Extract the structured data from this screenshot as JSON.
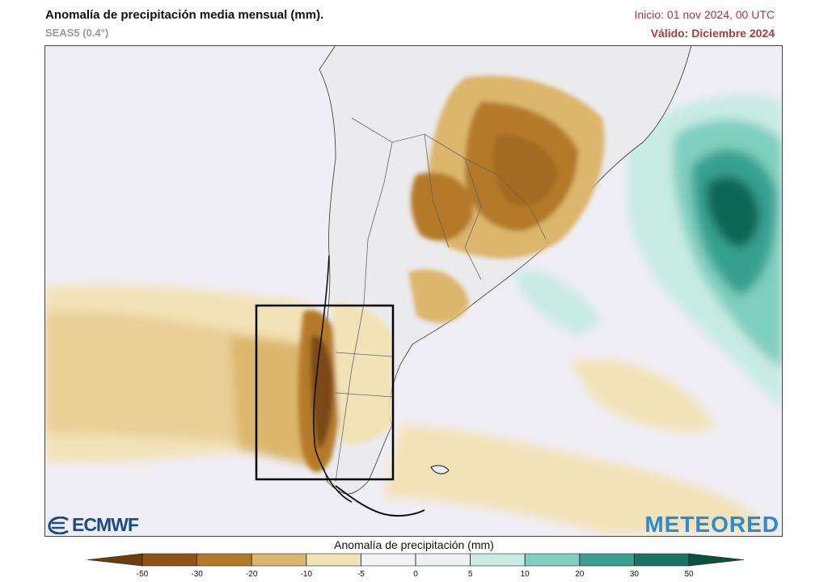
{
  "header": {
    "title": "Anomalía de precipitación media mensual (mm).",
    "model": "SEAS5 (0.4°)",
    "init": "Inicio: 01 nov 2024, 00 UTC",
    "valid": "Válido: Diciembre 2024"
  },
  "logos": {
    "left": "ECMWF",
    "right": "METEORED"
  },
  "legend": {
    "title": "Anomalía de precipitación (mm)",
    "ticks": [
      "-50",
      "-30",
      "-20",
      "-10",
      "-5",
      "0",
      "5",
      "10",
      "20",
      "30",
      "50"
    ],
    "colors": [
      "#6b3d0c",
      "#8e5415",
      "#b47a2c",
      "#dbb66c",
      "#f2e2b8",
      "#f4f2f7",
      "#eef0f4",
      "#c8ebe3",
      "#7fcfbf",
      "#37a08f",
      "#1a7564",
      "#0b4f3f"
    ]
  },
  "colors": {
    "ocean": "#f0eef5",
    "dry_light": "#f2e2b8",
    "dry_mid": "#dbb66c",
    "dry_strong": "#b47a2c",
    "dry_extreme": "#7a4a14",
    "wet_light": "#c8ebe3",
    "wet_mid": "#7fcfbf",
    "wet_strong": "#37a08f",
    "wet_extreme": "#0e6655"
  }
}
